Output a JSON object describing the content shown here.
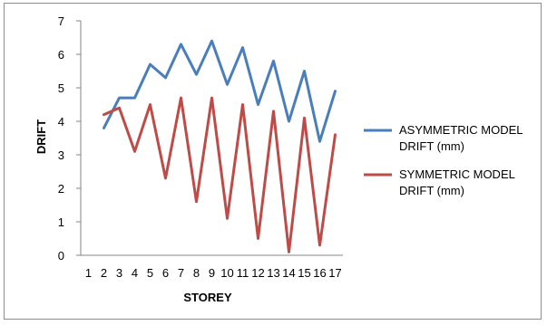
{
  "chart_data": {
    "type": "line",
    "title": "",
    "xlabel": "STOREY",
    "ylabel": "DRIFT",
    "categories": [
      "1",
      "2",
      "3",
      "4",
      "5",
      "6",
      "7",
      "8",
      "9",
      "10",
      "11",
      "12",
      "13",
      "14",
      "15",
      "16",
      "17"
    ],
    "ylim": [
      0,
      7
    ],
    "yticks": [
      "0",
      "1",
      "2",
      "3",
      "4",
      "5",
      "6",
      "7"
    ],
    "grid": false,
    "legend_position": "right",
    "series": [
      {
        "name_line1": "ASYMMETRIC MODEL",
        "name_line2": "DRIFT (mm)",
        "color": "#4a7ebb",
        "values": [
          null,
          3.8,
          4.7,
          4.7,
          5.7,
          5.3,
          6.3,
          5.4,
          6.4,
          5.1,
          6.2,
          4.5,
          5.8,
          4.0,
          5.5,
          3.4,
          4.9
        ]
      },
      {
        "name_line1": "SYMMETRIC MODEL",
        "name_line2": "DRIFT (mm)",
        "color": "#be4b48",
        "values": [
          null,
          4.2,
          4.4,
          3.1,
          4.5,
          2.3,
          4.7,
          1.6,
          4.7,
          1.1,
          4.5,
          0.5,
          4.3,
          0.1,
          4.1,
          0.3,
          3.6
        ]
      }
    ]
  }
}
